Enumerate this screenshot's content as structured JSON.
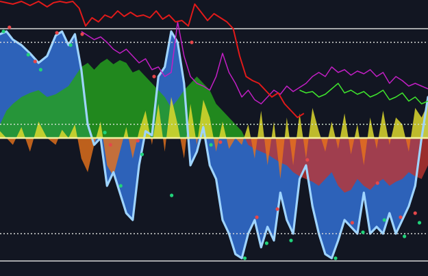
{
  "chart_data": {
    "type": "line",
    "title": "",
    "xlabel": "",
    "ylabel": "",
    "xlim": [
      0,
      100
    ],
    "ylim": [
      -100,
      100
    ],
    "grid": false,
    "legend": "none",
    "zero_line": 0,
    "levels": [
      {
        "name": "upper",
        "value": 80,
        "style": "solid",
        "color": "#d8d8d8"
      },
      {
        "name": "upper-mid",
        "value": 70,
        "style": "dotted",
        "color": "#d8d8d8"
      },
      {
        "name": "lower-mid",
        "value": -70,
        "style": "dotted",
        "color": "#d8d8d8"
      },
      {
        "name": "lower",
        "value": -90,
        "style": "solid",
        "color": "#d8d8d8"
      },
      {
        "name": "signal",
        "value": 10,
        "style": "dotted",
        "color": "#cfe0cf"
      }
    ],
    "colors": {
      "background": "#121622",
      "fast_fill": "#2f66c2",
      "fast_line": "#9fd4ff",
      "mid_fill_pos": "#25a11d",
      "mid_fill_neg": "#c0352f",
      "slow_fill_pos": "#ddd82e",
      "slow_fill_neg": "#e9731c",
      "red_line": "#e21a1a",
      "magenta_line": "#c21fc4",
      "green_line": "#3fe62d",
      "peak_marker": "#e5474a",
      "trough_marker": "#21d37a"
    },
    "series": [
      {
        "id": "fast",
        "render": "area-line",
        "x": [
          0,
          1.5,
          3,
          5,
          7,
          9,
          11,
          13,
          14.5,
          16,
          17.5,
          19,
          20.5,
          22,
          23.5,
          25,
          26.5,
          28,
          29.5,
          31,
          32.5,
          34,
          35.5,
          37,
          38.5,
          40,
          41.5,
          43,
          44.5,
          46,
          47.5,
          49,
          50.5,
          52,
          53.5,
          55,
          56.5,
          58,
          59.5,
          61,
          62.5,
          64,
          65.5,
          67,
          68.5,
          70,
          71.5,
          73,
          74.5,
          76,
          77.5,
          79,
          80.5,
          82,
          83.5,
          85,
          86.5,
          88,
          89.5,
          91,
          92.5,
          94,
          95.5,
          97,
          98.5,
          100
        ],
        "values": [
          76,
          78,
          72,
          68,
          62,
          55,
          60,
          75,
          78,
          68,
          76,
          50,
          10,
          -5,
          0,
          -35,
          -25,
          -40,
          -55,
          -60,
          -20,
          5,
          2,
          45,
          52,
          78,
          70,
          40,
          -20,
          -10,
          8,
          -20,
          -30,
          -60,
          -70,
          -85,
          -88,
          -70,
          -60,
          -80,
          -65,
          -75,
          -40,
          -60,
          -70,
          -30,
          -20,
          -50,
          -70,
          -85,
          -88,
          -75,
          -60,
          -65,
          -70,
          -40,
          -70,
          -65,
          -70,
          -55,
          -70,
          -60,
          -50,
          -35,
          0,
          30
        ]
      },
      {
        "id": "mid",
        "render": "area",
        "x": [
          0,
          1.5,
          3,
          5,
          7,
          9,
          11,
          13,
          14.5,
          16,
          17.5,
          19,
          20.5,
          22,
          23.5,
          25,
          26.5,
          28,
          29.5,
          31,
          32.5,
          34,
          35.5,
          37,
          38.5,
          40,
          41.5,
          43,
          44.5,
          46,
          47.5,
          49,
          50.5,
          52,
          53.5,
          55,
          56.5,
          58,
          59.5,
          61,
          62.5,
          64,
          65.5,
          67,
          68.5,
          70,
          71.5,
          73,
          74.5,
          76,
          77.5,
          79,
          80.5,
          82,
          83.5,
          85,
          86.5,
          88,
          89.5,
          91,
          92.5,
          94,
          95.5,
          97,
          98.5,
          100
        ],
        "values": [
          10,
          20,
          25,
          30,
          33,
          35,
          30,
          32,
          35,
          38,
          45,
          52,
          55,
          50,
          55,
          58,
          54,
          57,
          55,
          48,
          50,
          45,
          40,
          35,
          30,
          22,
          28,
          35,
          40,
          45,
          40,
          35,
          25,
          20,
          15,
          10,
          5,
          -5,
          -8,
          -10,
          -12,
          -15,
          -18,
          -20,
          -25,
          -28,
          -30,
          -32,
          -35,
          -30,
          -25,
          -35,
          -40,
          -38,
          -30,
          -35,
          -38,
          -33,
          -30,
          -35,
          -32,
          -30,
          -25,
          -28,
          -30,
          -20
        ]
      },
      {
        "id": "slow",
        "render": "area",
        "x": [
          0,
          1.5,
          3,
          5,
          7,
          9,
          11,
          13,
          14.5,
          16,
          17.5,
          19,
          20.5,
          22,
          23.5,
          25,
          26.5,
          28,
          29.5,
          31,
          32.5,
          34,
          35.5,
          37,
          38.5,
          40,
          41.5,
          43,
          44.5,
          46,
          47.5,
          49,
          50.5,
          52,
          53.5,
          55,
          56.5,
          58,
          59.5,
          61,
          62.5,
          64,
          65.5,
          67,
          68.5,
          70,
          71.5,
          73,
          74.5,
          76,
          77.5,
          79,
          80.5,
          82,
          83.5,
          85,
          86.5,
          88,
          89.5,
          91,
          92.5,
          94,
          95.5,
          97,
          98.5,
          100
        ],
        "values": [
          5,
          0,
          -5,
          8,
          -10,
          12,
          0,
          -5,
          6,
          0,
          10,
          -15,
          -25,
          -5,
          12,
          -20,
          -28,
          -10,
          8,
          -15,
          5,
          20,
          -5,
          25,
          -10,
          30,
          10,
          -15,
          25,
          -5,
          28,
          15,
          -10,
          12,
          -8,
          0,
          -5,
          10,
          -15,
          20,
          -20,
          12,
          -30,
          15,
          -20,
          18,
          -15,
          22,
          5,
          -10,
          12,
          -8,
          18,
          -12,
          10,
          -20,
          15,
          -8,
          20,
          -5,
          15,
          10,
          -10,
          22,
          15,
          25
        ]
      },
      {
        "id": "red-line",
        "render": "line",
        "x": [
          0,
          3,
          5,
          7,
          9,
          11,
          12.5,
          14,
          15.5,
          17,
          18.5,
          20,
          21.5,
          23,
          24.5,
          26,
          27.5,
          29,
          30.5,
          32,
          33.5,
          35,
          36.5,
          38,
          39.5,
          41,
          42.5,
          44,
          45.5,
          47,
          48.5,
          50,
          51.5,
          53,
          54.5,
          56,
          57.5,
          59,
          60.5,
          62,
          63.5,
          65,
          66.5,
          68,
          69.5,
          71
        ],
        "values": [
          100,
          98,
          100,
          97,
          100,
          96,
          99,
          100,
          99,
          100,
          95,
          82,
          88,
          85,
          90,
          88,
          93,
          89,
          92,
          89,
          90,
          88,
          93,
          87,
          90,
          85,
          86,
          82,
          98,
          92,
          86,
          91,
          88,
          85,
          80,
          60,
          45,
          42,
          40,
          35,
          30,
          33,
          25,
          20,
          15,
          18
        ]
      },
      {
        "id": "magenta-line",
        "render": "line",
        "x": [
          19,
          20.5,
          22,
          23.5,
          25,
          26.5,
          28,
          29.5,
          31,
          32.5,
          34,
          35.5,
          37,
          38.5,
          40,
          41.5,
          43,
          44.5,
          46,
          47.5,
          49,
          50.5,
          52,
          53.5,
          55,
          56.5,
          58,
          59.5,
          61,
          62.5,
          64,
          65.5,
          67,
          68.5,
          70,
          71.5,
          73,
          74.5,
          76,
          77.5,
          79,
          80.5,
          82,
          83.5,
          85,
          86.5,
          88,
          89.5,
          91,
          92.5,
          94,
          95.5,
          97,
          98.5,
          100
        ],
        "values": [
          78,
          75,
          72,
          74,
          70,
          65,
          62,
          65,
          60,
          55,
          58,
          50,
          52,
          45,
          48,
          85,
          60,
          45,
          40,
          38,
          35,
          45,
          62,
          48,
          40,
          30,
          35,
          28,
          25,
          30,
          35,
          32,
          38,
          34,
          37,
          40,
          45,
          48,
          45,
          52,
          48,
          50,
          46,
          49,
          47,
          50,
          45,
          48,
          40,
          45,
          42,
          38,
          40,
          38,
          36
        ]
      },
      {
        "id": "green-line",
        "render": "line",
        "x": [
          70,
          71.5,
          73,
          74.5,
          76,
          77.5,
          79,
          80.5,
          82,
          83.5,
          85,
          86.5,
          88,
          89.5,
          91,
          92.5,
          94,
          95.5,
          97,
          98.5,
          100
        ],
        "values": [
          35,
          33,
          34,
          30,
          32,
          36,
          40,
          33,
          35,
          32,
          34,
          30,
          32,
          35,
          28,
          30,
          33,
          27,
          30,
          25,
          27
        ]
      }
    ],
    "markers": [
      {
        "kind": "peak",
        "x": 2.2,
        "y": 81
      },
      {
        "kind": "trough",
        "x": 0.8,
        "y": 78
      },
      {
        "kind": "peak",
        "x": 8.2,
        "y": 56
      },
      {
        "kind": "trough",
        "x": 6.6,
        "y": 61
      },
      {
        "kind": "trough",
        "x": 9.5,
        "y": 50
      },
      {
        "kind": "peak",
        "x": 13.3,
        "y": 77
      },
      {
        "kind": "trough",
        "x": 16.5,
        "y": 68
      },
      {
        "kind": "peak",
        "x": 19.2,
        "y": 76
      },
      {
        "kind": "trough",
        "x": 24.5,
        "y": 4
      },
      {
        "kind": "peak",
        "x": 25.8,
        "y": -5
      },
      {
        "kind": "trough",
        "x": 28.2,
        "y": -35
      },
      {
        "kind": "peak",
        "x": 32.2,
        "y": -2
      },
      {
        "kind": "trough",
        "x": 33.2,
        "y": -12
      },
      {
        "kind": "peak",
        "x": 36,
        "y": 45
      },
      {
        "kind": "trough",
        "x": 40.1,
        "y": -42
      },
      {
        "kind": "peak",
        "x": 44.8,
        "y": 70
      },
      {
        "kind": "trough",
        "x": 49.3,
        "y": -5
      },
      {
        "kind": "peak",
        "x": 51.5,
        "y": -3
      },
      {
        "kind": "trough",
        "x": 57.2,
        "y": -88
      },
      {
        "kind": "peak",
        "x": 60,
        "y": -58
      },
      {
        "kind": "trough",
        "x": 62.3,
        "y": -77
      },
      {
        "kind": "peak",
        "x": 64.8,
        "y": -52
      },
      {
        "kind": "trough",
        "x": 68,
        "y": -75
      },
      {
        "kind": "peak",
        "x": 71.8,
        "y": -16
      },
      {
        "kind": "trough",
        "x": 78.4,
        "y": -88
      },
      {
        "kind": "peak",
        "x": 82.3,
        "y": -62
      },
      {
        "kind": "trough",
        "x": 84.8,
        "y": -69
      },
      {
        "kind": "peak",
        "x": 88.2,
        "y": -33
      },
      {
        "kind": "trough",
        "x": 89.8,
        "y": -60
      },
      {
        "kind": "peak",
        "x": 93.6,
        "y": -58
      },
      {
        "kind": "trough",
        "x": 94.5,
        "y": -72
      },
      {
        "kind": "peak",
        "x": 97,
        "y": -55
      },
      {
        "kind": "trough",
        "x": 98,
        "y": -62
      }
    ]
  }
}
